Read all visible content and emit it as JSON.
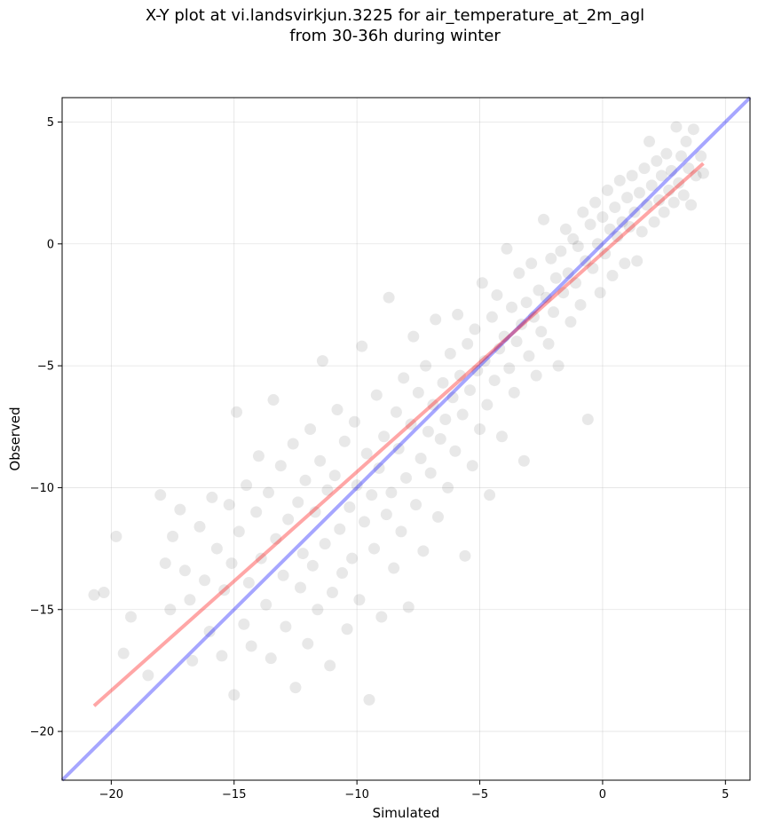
{
  "chart_data": {
    "type": "scatter",
    "title_lines": [
      "X-Y plot at vi.landsvirkjun.3225 for air_temperature_at_2m_agl",
      "from 30-36h during winter"
    ],
    "xlabel": "Simulated",
    "ylabel": "Observed",
    "xlim": [
      -22,
      6
    ],
    "ylim": [
      -22,
      6
    ],
    "xticks": [
      -20,
      -15,
      -10,
      -5,
      0,
      5
    ],
    "yticks": [
      -20,
      -15,
      -10,
      -5,
      0,
      5
    ],
    "xtick_labels": [
      "−20",
      "−15",
      "−10",
      "−5",
      "0",
      "5"
    ],
    "ytick_labels": [
      "−20",
      "−15",
      "−10",
      "−5",
      "0",
      "5"
    ],
    "grid": true,
    "point_color": "#000000",
    "point_alpha": 0.09,
    "lines": [
      {
        "kind": "identity",
        "color": "#0000ff",
        "alpha": 0.35,
        "x": [
          -22,
          6
        ],
        "y": [
          -22,
          6
        ]
      },
      {
        "kind": "regression",
        "color": "#ff0000",
        "alpha": 0.35,
        "x": [
          -20.7,
          4.1
        ],
        "y": [
          -18.95,
          3.3
        ]
      }
    ],
    "points": [
      [
        -20.7,
        -14.4
      ],
      [
        -20.3,
        -14.3
      ],
      [
        -19.8,
        -12.0
      ],
      [
        -19.5,
        -16.8
      ],
      [
        -19.2,
        -15.3
      ],
      [
        -18.5,
        -17.7
      ],
      [
        -18.0,
        -10.3
      ],
      [
        -17.8,
        -13.1
      ],
      [
        -17.6,
        -15.0
      ],
      [
        -17.5,
        -12.0
      ],
      [
        -17.2,
        -10.9
      ],
      [
        -17.0,
        -13.4
      ],
      [
        -16.8,
        -14.6
      ],
      [
        -16.7,
        -17.1
      ],
      [
        -16.4,
        -11.6
      ],
      [
        -16.2,
        -13.8
      ],
      [
        -16.0,
        -15.9
      ],
      [
        -15.9,
        -10.4
      ],
      [
        -15.7,
        -12.5
      ],
      [
        -15.5,
        -16.9
      ],
      [
        -15.4,
        -14.2
      ],
      [
        -15.2,
        -10.7
      ],
      [
        -15.1,
        -13.1
      ],
      [
        -15.0,
        -18.5
      ],
      [
        -14.9,
        -6.9
      ],
      [
        -14.8,
        -11.8
      ],
      [
        -14.6,
        -15.6
      ],
      [
        -14.5,
        -9.9
      ],
      [
        -14.4,
        -13.9
      ],
      [
        -14.3,
        -16.5
      ],
      [
        -14.1,
        -11.0
      ],
      [
        -14.0,
        -8.7
      ],
      [
        -13.9,
        -12.9
      ],
      [
        -13.7,
        -14.8
      ],
      [
        -13.6,
        -10.2
      ],
      [
        -13.5,
        -17.0
      ],
      [
        -13.4,
        -6.4
      ],
      [
        -13.3,
        -12.1
      ],
      [
        -13.1,
        -9.1
      ],
      [
        -13.0,
        -13.6
      ],
      [
        -12.9,
        -15.7
      ],
      [
        -12.8,
        -11.3
      ],
      [
        -12.6,
        -8.2
      ],
      [
        -12.5,
        -18.2
      ],
      [
        -12.4,
        -10.6
      ],
      [
        -12.3,
        -14.1
      ],
      [
        -12.2,
        -12.7
      ],
      [
        -12.1,
        -9.7
      ],
      [
        -12.0,
        -16.4
      ],
      [
        -11.9,
        -7.6
      ],
      [
        -11.8,
        -13.2
      ],
      [
        -11.7,
        -11.0
      ],
      [
        -11.6,
        -15.0
      ],
      [
        -11.5,
        -8.9
      ],
      [
        -11.4,
        -4.8
      ],
      [
        -11.3,
        -12.3
      ],
      [
        -11.2,
        -10.1
      ],
      [
        -11.1,
        -17.3
      ],
      [
        -11.0,
        -14.3
      ],
      [
        -10.9,
        -9.5
      ],
      [
        -10.8,
        -6.8
      ],
      [
        -10.7,
        -11.7
      ],
      [
        -10.6,
        -13.5
      ],
      [
        -10.5,
        -8.1
      ],
      [
        -10.4,
        -15.8
      ],
      [
        -10.3,
        -10.8
      ],
      [
        -10.2,
        -12.9
      ],
      [
        -10.1,
        -7.3
      ],
      [
        -10.0,
        -9.9
      ],
      [
        -9.9,
        -14.6
      ],
      [
        -9.8,
        -4.2
      ],
      [
        -9.7,
        -11.4
      ],
      [
        -9.6,
        -8.6
      ],
      [
        -9.5,
        -18.7
      ],
      [
        -9.4,
        -10.3
      ],
      [
        -9.3,
        -12.5
      ],
      [
        -9.2,
        -6.2
      ],
      [
        -9.1,
        -9.2
      ],
      [
        -9.0,
        -15.3
      ],
      [
        -8.9,
        -7.9
      ],
      [
        -8.8,
        -11.1
      ],
      [
        -8.7,
        -2.2
      ],
      [
        -8.6,
        -10.2
      ],
      [
        -8.5,
        -13.3
      ],
      [
        -8.4,
        -6.9
      ],
      [
        -8.3,
        -8.4
      ],
      [
        -8.2,
        -11.8
      ],
      [
        -8.1,
        -5.5
      ],
      [
        -8.0,
        -9.6
      ],
      [
        -7.9,
        -14.9
      ],
      [
        -7.8,
        -7.4
      ],
      [
        -7.7,
        -3.8
      ],
      [
        -7.6,
        -10.7
      ],
      [
        -7.5,
        -6.1
      ],
      [
        -7.4,
        -8.8
      ],
      [
        -7.3,
        -12.6
      ],
      [
        -7.2,
        -5.0
      ],
      [
        -7.1,
        -7.7
      ],
      [
        -7.0,
        -9.4
      ],
      [
        -6.9,
        -6.6
      ],
      [
        -6.8,
        -3.1
      ],
      [
        -6.7,
        -11.2
      ],
      [
        -6.6,
        -8.0
      ],
      [
        -6.5,
        -5.7
      ],
      [
        -6.4,
        -7.2
      ],
      [
        -6.3,
        -10.0
      ],
      [
        -6.2,
        -4.5
      ],
      [
        -6.1,
        -6.3
      ],
      [
        -6.0,
        -8.5
      ],
      [
        -5.9,
        -2.9
      ],
      [
        -5.8,
        -5.4
      ],
      [
        -5.7,
        -7.0
      ],
      [
        -5.6,
        -12.8
      ],
      [
        -5.5,
        -4.1
      ],
      [
        -5.4,
        -6.0
      ],
      [
        -5.3,
        -9.1
      ],
      [
        -5.2,
        -3.5
      ],
      [
        -5.1,
        -5.2
      ],
      [
        -5.0,
        -7.6
      ],
      [
        -4.9,
        -1.6
      ],
      [
        -4.8,
        -4.8
      ],
      [
        -4.7,
        -6.6
      ],
      [
        -4.6,
        -10.3
      ],
      [
        -4.5,
        -3.0
      ],
      [
        -4.4,
        -5.6
      ],
      [
        -4.3,
        -2.1
      ],
      [
        -4.2,
        -4.3
      ],
      [
        -4.1,
        -7.9
      ],
      [
        -4.0,
        -3.8
      ],
      [
        -3.9,
        -0.2
      ],
      [
        -3.8,
        -5.1
      ],
      [
        -3.7,
        -2.6
      ],
      [
        -3.6,
        -6.1
      ],
      [
        -3.5,
        -4.0
      ],
      [
        -3.4,
        -1.2
      ],
      [
        -3.3,
        -3.3
      ],
      [
        -3.2,
        -8.9
      ],
      [
        -3.1,
        -2.4
      ],
      [
        -3.0,
        -4.6
      ],
      [
        -2.9,
        -0.8
      ],
      [
        -2.8,
        -3.0
      ],
      [
        -2.7,
        -5.4
      ],
      [
        -2.6,
        -1.9
      ],
      [
        -2.5,
        -3.6
      ],
      [
        -2.4,
        1.0
      ],
      [
        -2.3,
        -2.2
      ],
      [
        -2.2,
        -4.1
      ],
      [
        -2.1,
        -0.6
      ],
      [
        -2.0,
        -2.8
      ],
      [
        -1.9,
        -1.4
      ],
      [
        -1.8,
        -5.0
      ],
      [
        -1.7,
        -0.3
      ],
      [
        -1.6,
        -2.0
      ],
      [
        -1.5,
        0.6
      ],
      [
        -1.4,
        -1.2
      ],
      [
        -1.3,
        -3.2
      ],
      [
        -1.2,
        0.2
      ],
      [
        -1.1,
        -1.6
      ],
      [
        -1.0,
        -0.1
      ],
      [
        -0.9,
        -2.5
      ],
      [
        -0.8,
        1.3
      ],
      [
        -0.7,
        -0.7
      ],
      [
        -0.6,
        -7.2
      ],
      [
        -0.5,
        0.8
      ],
      [
        -0.4,
        -1.0
      ],
      [
        -0.3,
        1.7
      ],
      [
        -0.2,
        0.0
      ],
      [
        -0.1,
        -2.0
      ],
      [
        0.0,
        1.1
      ],
      [
        0.1,
        -0.4
      ],
      [
        0.2,
        2.2
      ],
      [
        0.3,
        0.6
      ],
      [
        0.4,
        -1.3
      ],
      [
        0.5,
        1.5
      ],
      [
        0.6,
        0.3
      ],
      [
        0.7,
        2.6
      ],
      [
        0.8,
        0.9
      ],
      [
        0.9,
        -0.8
      ],
      [
        1.0,
        1.9
      ],
      [
        1.1,
        0.7
      ],
      [
        1.2,
        2.8
      ],
      [
        1.3,
        1.3
      ],
      [
        1.4,
        -0.7
      ],
      [
        1.5,
        2.1
      ],
      [
        1.6,
        0.5
      ],
      [
        1.7,
        3.1
      ],
      [
        1.8,
        1.6
      ],
      [
        1.9,
        4.2
      ],
      [
        2.0,
        2.4
      ],
      [
        2.1,
        0.9
      ],
      [
        2.2,
        3.4
      ],
      [
        2.3,
        1.8
      ],
      [
        2.4,
        2.8
      ],
      [
        2.5,
        1.3
      ],
      [
        2.6,
        3.7
      ],
      [
        2.7,
        2.2
      ],
      [
        2.8,
        3.0
      ],
      [
        2.9,
        1.7
      ],
      [
        3.0,
        4.8
      ],
      [
        3.1,
        2.5
      ],
      [
        3.2,
        3.6
      ],
      [
        3.3,
        2.0
      ],
      [
        3.4,
        4.2
      ],
      [
        3.5,
        3.1
      ],
      [
        3.6,
        1.6
      ],
      [
        3.7,
        4.7
      ],
      [
        3.8,
        2.8
      ],
      [
        4.0,
        3.6
      ],
      [
        4.1,
        2.9
      ]
    ]
  }
}
